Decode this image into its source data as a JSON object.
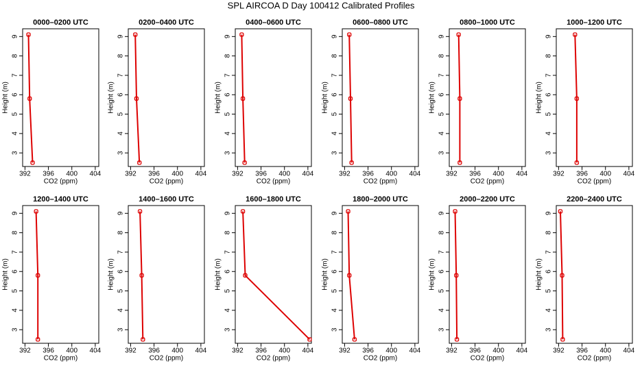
{
  "title": "SPL AIRCOA D  Day 100412  Calibrated Profiles",
  "chart_data": [
    {
      "type": "line",
      "title": "0000–0200 UTC",
      "xlabel": "CO2 (ppm)",
      "ylabel": "Height (m)",
      "color": "#dd0000",
      "x": [
        392.6,
        392.8,
        393.3
      ],
      "values": [
        9.1,
        5.8,
        2.5
      ],
      "xlim": [
        391.6,
        404.6
      ],
      "ylim": [
        2.3,
        9.4
      ],
      "xticks": [
        392,
        396,
        400,
        404
      ],
      "yticks": [
        3,
        4,
        5,
        6,
        7,
        8,
        9
      ]
    },
    {
      "type": "line",
      "title": "0200–0400 UTC",
      "xlabel": "CO2 (ppm)",
      "ylabel": "Height (m)",
      "color": "#dd0000",
      "x": [
        392.8,
        393.0,
        393.5
      ],
      "values": [
        9.1,
        5.8,
        2.5
      ],
      "xlim": [
        391.6,
        404.6
      ],
      "ylim": [
        2.3,
        9.4
      ],
      "xticks": [
        392,
        396,
        400,
        404
      ],
      "yticks": [
        3,
        4,
        5,
        6,
        7,
        8,
        9
      ]
    },
    {
      "type": "line",
      "title": "0400–0600 UTC",
      "xlabel": "CO2 (ppm)",
      "ylabel": "Height (m)",
      "color": "#dd0000",
      "x": [
        392.7,
        392.9,
        393.2
      ],
      "values": [
        9.1,
        5.8,
        2.5
      ],
      "xlim": [
        391.6,
        404.6
      ],
      "ylim": [
        2.3,
        9.4
      ],
      "xticks": [
        392,
        396,
        400,
        404
      ],
      "yticks": [
        3,
        4,
        5,
        6,
        7,
        8,
        9
      ]
    },
    {
      "type": "line",
      "title": "0600–0800 UTC",
      "xlabel": "CO2 (ppm)",
      "ylabel": "Height (m)",
      "color": "#dd0000",
      "x": [
        392.8,
        393.0,
        393.2
      ],
      "values": [
        9.1,
        5.8,
        2.5
      ],
      "xlim": [
        391.6,
        404.6
      ],
      "ylim": [
        2.3,
        9.4
      ],
      "xticks": [
        392,
        396,
        400,
        404
      ],
      "yticks": [
        3,
        4,
        5,
        6,
        7,
        8,
        9
      ]
    },
    {
      "type": "line",
      "title": "0800–1000 UTC",
      "xlabel": "CO2 (ppm)",
      "ylabel": "Height (m)",
      "color": "#dd0000",
      "x": [
        393.2,
        393.4,
        393.4
      ],
      "values": [
        9.1,
        5.8,
        2.5
      ],
      "xlim": [
        391.6,
        404.6
      ],
      "ylim": [
        2.3,
        9.4
      ],
      "xticks": [
        392,
        396,
        400,
        404
      ],
      "yticks": [
        3,
        4,
        5,
        6,
        7,
        8,
        9
      ]
    },
    {
      "type": "line",
      "title": "1000–1200 UTC",
      "xlabel": "CO2 (ppm)",
      "ylabel": "Height (m)",
      "color": "#dd0000",
      "x": [
        394.8,
        395.1,
        395.1
      ],
      "values": [
        9.1,
        5.8,
        2.5
      ],
      "xlim": [
        391.6,
        404.6
      ],
      "ylim": [
        2.3,
        9.4
      ],
      "xticks": [
        392,
        396,
        400,
        404
      ],
      "yticks": [
        3,
        4,
        5,
        6,
        7,
        8,
        9
      ]
    },
    {
      "type": "line",
      "title": "1200–1400 UTC",
      "xlabel": "CO2 (ppm)",
      "ylabel": "Height (m)",
      "color": "#dd0000",
      "x": [
        393.9,
        394.2,
        394.2
      ],
      "values": [
        9.1,
        5.8,
        2.5
      ],
      "xlim": [
        391.6,
        404.6
      ],
      "ylim": [
        2.3,
        9.4
      ],
      "xticks": [
        392,
        396,
        400,
        404
      ],
      "yticks": [
        3,
        4,
        5,
        6,
        7,
        8,
        9
      ]
    },
    {
      "type": "line",
      "title": "1400–1600 UTC",
      "xlabel": "CO2 (ppm)",
      "ylabel": "Height (m)",
      "color": "#dd0000",
      "x": [
        393.6,
        393.9,
        394.1
      ],
      "values": [
        9.1,
        5.8,
        2.5
      ],
      "xlim": [
        391.6,
        404.6
      ],
      "ylim": [
        2.3,
        9.4
      ],
      "xticks": [
        392,
        396,
        400,
        404
      ],
      "yticks": [
        3,
        4,
        5,
        6,
        7,
        8,
        9
      ]
    },
    {
      "type": "line",
      "title": "1600–1800 UTC",
      "xlabel": "CO2 (ppm)",
      "ylabel": "Height (m)",
      "color": "#dd0000",
      "x": [
        392.9,
        393.3,
        404.3
      ],
      "values": [
        9.1,
        5.8,
        2.5
      ],
      "xlim": [
        391.6,
        404.6
      ],
      "ylim": [
        2.3,
        9.4
      ],
      "xticks": [
        392,
        396,
        400,
        404
      ],
      "yticks": [
        3,
        4,
        5,
        6,
        7,
        8,
        9
      ]
    },
    {
      "type": "line",
      "title": "1800–2000 UTC",
      "xlabel": "CO2 (ppm)",
      "ylabel": "Height (m)",
      "color": "#dd0000",
      "x": [
        392.6,
        392.8,
        393.7
      ],
      "values": [
        9.1,
        5.8,
        2.5
      ],
      "xlim": [
        391.6,
        404.6
      ],
      "ylim": [
        2.3,
        9.4
      ],
      "xticks": [
        392,
        396,
        400,
        404
      ],
      "yticks": [
        3,
        4,
        5,
        6,
        7,
        8,
        9
      ]
    },
    {
      "type": "line",
      "title": "2000–2200 UTC",
      "xlabel": "CO2 (ppm)",
      "ylabel": "Height (m)",
      "color": "#dd0000",
      "x": [
        392.6,
        392.8,
        392.9
      ],
      "values": [
        9.1,
        5.8,
        2.5
      ],
      "xlim": [
        391.6,
        404.6
      ],
      "ylim": [
        2.3,
        9.4
      ],
      "xticks": [
        392,
        396,
        400,
        404
      ],
      "yticks": [
        3,
        4,
        5,
        6,
        7,
        8,
        9
      ]
    },
    {
      "type": "line",
      "title": "2200–2400 UTC",
      "xlabel": "CO2 (ppm)",
      "ylabel": "Height (m)",
      "color": "#dd0000",
      "x": [
        392.3,
        392.6,
        392.7
      ],
      "values": [
        9.1,
        5.8,
        2.5
      ],
      "xlim": [
        391.6,
        404.6
      ],
      "ylim": [
        2.3,
        9.4
      ],
      "xticks": [
        392,
        396,
        400,
        404
      ],
      "yticks": [
        3,
        4,
        5,
        6,
        7,
        8,
        9
      ]
    }
  ]
}
